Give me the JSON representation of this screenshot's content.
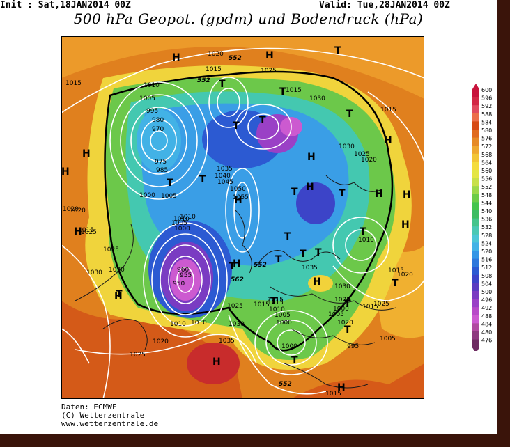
{
  "header": {
    "init": "Init : Sat,18JAN2014 00Z",
    "valid": "Valid: Tue,28JAN2014 00Z",
    "title": "500 hPa Geopot. (gpdm) und Bodendruck (hPa)"
  },
  "legend": {
    "values": [
      600,
      596,
      592,
      588,
      584,
      580,
      576,
      572,
      568,
      564,
      560,
      556,
      552,
      548,
      544,
      540,
      536,
      532,
      528,
      524,
      520,
      516,
      512,
      508,
      504,
      500,
      496,
      492,
      488,
      484,
      480,
      476
    ],
    "colors": [
      "#c8143c",
      "#d22846",
      "#e04b5f",
      "#ec6e4a",
      "#d64a16",
      "#e06b1e",
      "#e68a26",
      "#eea830",
      "#f2c536",
      "#f4dc3e",
      "#e4e646",
      "#c8e04a",
      "#9cd84a",
      "#6ccc48",
      "#44c44c",
      "#3cbc64",
      "#44c48c",
      "#4ac8b4",
      "#4cc6d6",
      "#42b2e6",
      "#3496e6",
      "#2e78dc",
      "#2c5ad2",
      "#3c44c8",
      "#5a3cc0",
      "#7a3cc2",
      "#9a40c6",
      "#b84ac8",
      "#cc5ad0",
      "#b04aa0",
      "#8e3a80",
      "#6e2c62"
    ]
  },
  "map": {
    "high_labels": [
      "H",
      "H",
      "H",
      "H",
      "H",
      "H",
      "H",
      "H",
      "H",
      "H",
      "H",
      "H",
      "H",
      "H",
      "H",
      "H",
      "H"
    ],
    "low_labels": [
      "T",
      "T",
      "T",
      "T",
      "T",
      "T",
      "T",
      "T",
      "T",
      "T",
      "T",
      "T",
      "T",
      "T",
      "T",
      "T",
      "T",
      "T",
      "T",
      "T",
      "T",
      "T"
    ],
    "isobar_labels": [
      "1020",
      "1015",
      "1010",
      "1005",
      "995",
      "980",
      "970",
      "975",
      "985",
      "1000",
      "1005",
      "1010",
      "1015",
      "1020",
      "1025",
      "1030",
      "1035",
      "1040",
      "1045",
      "1050",
      "1055",
      "960",
      "955",
      "950",
      "1000",
      "1005",
      "1010",
      "1025",
      "1015",
      "1030",
      "1030",
      "1025",
      "1020",
      "1015",
      "1020",
      "1025",
      "1015",
      "1030",
      "1035",
      "1000",
      "1010",
      "1015",
      "1020",
      "1025",
      "1010",
      "1005",
      "1000",
      "995",
      "1005",
      "1015",
      "1020",
      "1025",
      "1035",
      "1030",
      "1025",
      "1015",
      "1015",
      "1005",
      "1000",
      "1010",
      "1015",
      "1025",
      "1030",
      "1020",
      "1010",
      "1015"
    ],
    "geopotential_labels": [
      "552",
      "552",
      "552",
      "562",
      "552"
    ]
  },
  "footer": {
    "source": "Daten: ECMWF",
    "copyright": "(C) Wetterzentrale",
    "url": "www.wetterzentrale.de"
  }
}
